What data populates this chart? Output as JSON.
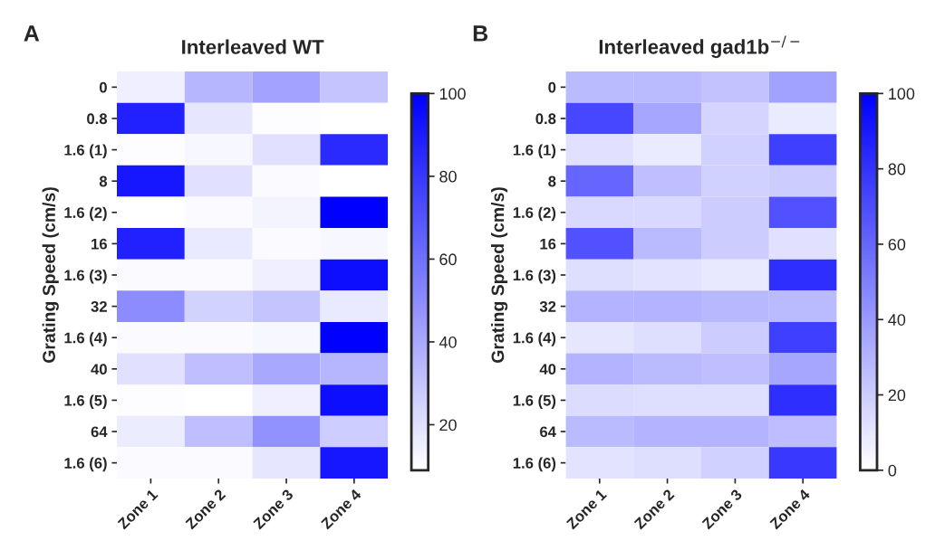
{
  "chart_data": [
    {
      "type": "heatmap",
      "title": "Interleaved WT",
      "ylabel": "Grating Speed (cm/s)",
      "annotations": [
        "A"
      ],
      "categories": [
        "Zone 1",
        "Zone 2",
        "Zone 3",
        "Zone 4"
      ],
      "y_categories": [
        "0",
        "0.8",
        "1.6 (1)",
        "8",
        "1.6 (2)",
        "16",
        "1.6 (3)",
        "32",
        "1.6 (4)",
        "40",
        "1.6 (5)",
        "64",
        "1.6 (6)"
      ],
      "cells": [
        [
          15,
          35,
          42,
          30
        ],
        [
          88,
          18,
          10,
          9
        ],
        [
          10,
          12,
          20,
          85
        ],
        [
          92,
          20,
          11,
          9
        ],
        [
          9,
          11,
          13,
          100
        ],
        [
          88,
          17,
          11,
          12
        ],
        [
          11,
          11,
          15,
          95
        ],
        [
          50,
          25,
          30,
          17
        ],
        [
          11,
          11,
          12,
          100
        ],
        [
          20,
          32,
          40,
          35
        ],
        [
          10,
          9,
          15,
          95
        ],
        [
          16,
          32,
          48,
          27
        ],
        [
          11,
          11,
          18,
          92
        ]
      ],
      "clim": [
        9,
        100
      ],
      "cticks": [
        20,
        40,
        60,
        80,
        100
      ]
    },
    {
      "type": "heatmap",
      "title": "Interleaved gad1b$^{−/−}$",
      "ylabel": "Grating Speed (cm/s)",
      "annotations": [
        "B"
      ],
      "categories": [
        "Zone 1",
        "Zone 2",
        "Zone 3",
        "Zone 4"
      ],
      "y_categories": [
        "0",
        "0.8",
        "1.6 (1)",
        "8",
        "1.6 (2)",
        "16",
        "1.6 (3)",
        "32",
        "1.6 (4)",
        "40",
        "1.6 (5)",
        "64",
        "1.6 (6)"
      ],
      "cells": [
        [
          27,
          27,
          24,
          37
        ],
        [
          72,
          35,
          17,
          8
        ],
        [
          12,
          8,
          18,
          75
        ],
        [
          60,
          25,
          18,
          20
        ],
        [
          15,
          15,
          20,
          68
        ],
        [
          68,
          27,
          20,
          12
        ],
        [
          13,
          11,
          9,
          82
        ],
        [
          30,
          30,
          28,
          27
        ],
        [
          10,
          13,
          20,
          75
        ],
        [
          30,
          27,
          25,
          35
        ],
        [
          14,
          13,
          13,
          82
        ],
        [
          27,
          30,
          30,
          26
        ],
        [
          11,
          13,
          18,
          78
        ]
      ],
      "clim": [
        0,
        100
      ],
      "cticks": [
        0,
        20,
        40,
        60,
        80,
        100
      ]
    }
  ]
}
